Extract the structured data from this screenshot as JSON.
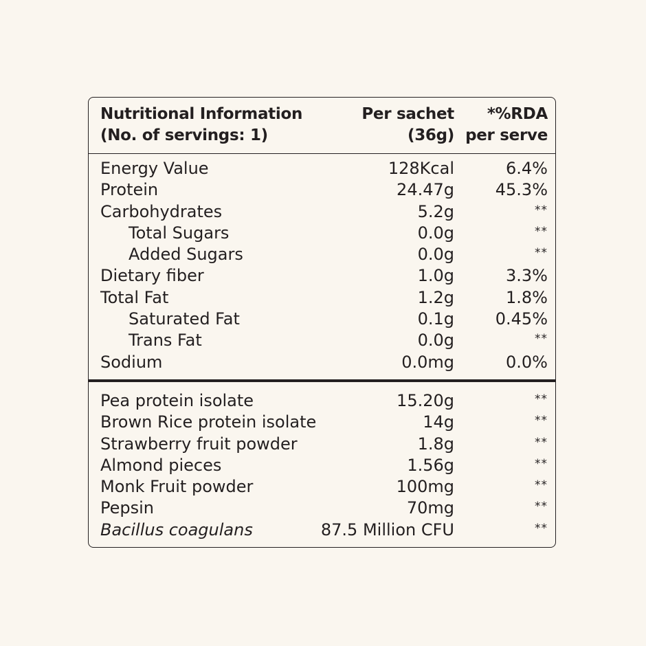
{
  "header": {
    "title_line1": "Nutritional Information",
    "title_line2": "(No. of servings: 1)",
    "amount_line1": "Per sachet",
    "amount_line2": "(36g)",
    "rda_line1": "*%RDA",
    "rda_line2": "per serve"
  },
  "nutrients": [
    {
      "name": "Energy Value",
      "amount": "128Kcal",
      "rda": "6.4%"
    },
    {
      "name": "Protein",
      "amount": "24.47g",
      "rda": "45.3%"
    },
    {
      "name": "Carbohydrates",
      "amount": "5.2g",
      "rda": "**"
    },
    {
      "name": "Total Sugars",
      "amount": "0.0g",
      "rda": "**"
    },
    {
      "name": "Added Sugars",
      "amount": "0.0g",
      "rda": "**"
    },
    {
      "name": "Dietary fiber",
      "amount": "1.0g",
      "rda": "3.3%"
    },
    {
      "name": "Total Fat",
      "amount": "1.2g",
      "rda": "1.8%"
    },
    {
      "name": "Saturated Fat",
      "amount": "0.1g",
      "rda": "0.45%"
    },
    {
      "name": "Trans Fat",
      "amount": "0.0g",
      "rda": "**"
    },
    {
      "name": "Sodium",
      "amount": "0.0mg",
      "rda": "0.0%"
    }
  ],
  "ingredients": [
    {
      "name": "Pea protein isolate",
      "amount": "15.20g",
      "rda": "**"
    },
    {
      "name": "Brown Rice protein isolate",
      "amount": "14g",
      "rda": "**"
    },
    {
      "name": "Strawberry fruit powder",
      "amount": "1.8g",
      "rda": "**"
    },
    {
      "name": "Almond pieces",
      "amount": "1.56g",
      "rda": "**"
    },
    {
      "name": "Monk Fruit powder",
      "amount": "100mg",
      "rda": "**"
    },
    {
      "name": "Pepsin",
      "amount": "70mg",
      "rda": "**"
    },
    {
      "name": "Bacillus coagulans",
      "amount": "87.5 Million CFU",
      "rda": "**"
    }
  ]
}
